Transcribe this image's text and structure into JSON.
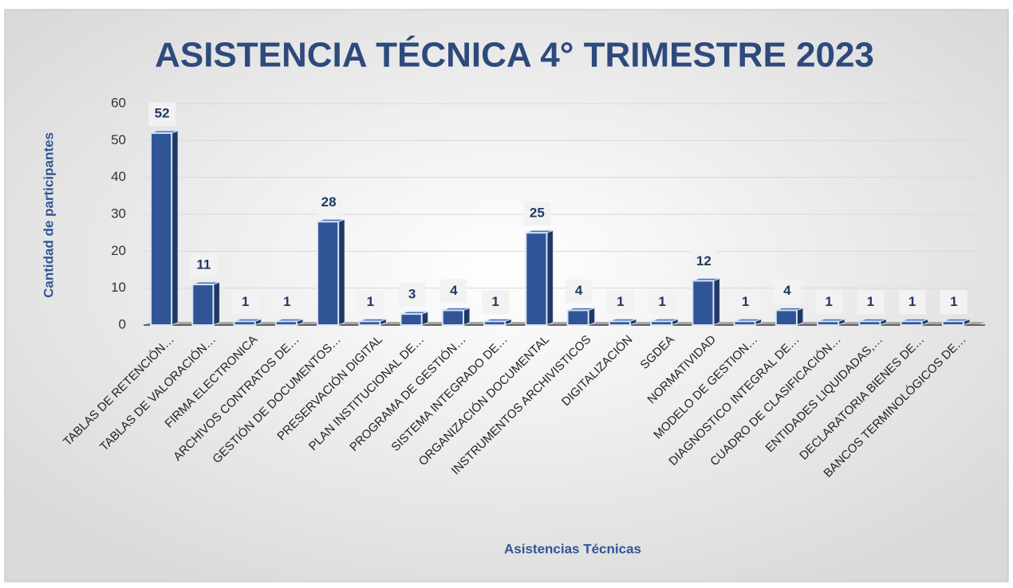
{
  "chart_data": {
    "type": "bar",
    "title": "ASISTENCIA TÉCNICA 4° TRIMESTRE 2023",
    "x_label": "Asistencias Técnicas",
    "y_label": "Cantidad de participantes",
    "categories": [
      "TABLAS DE RETENCIÓN…",
      "TABLAS DE VALORACIÓN…",
      "FIRMA ELECTRONICA",
      "ARCHIVOS CONTRATOS DE…",
      "GESTIÓN DE DOCUMENTOS…",
      "PRESERVACIÓN DIGITAL",
      "PLAN INSTITUCIONAL DE…",
      "PROGRAMA DE GESTIÓN…",
      "SISTEMA INTEGRADO DE…",
      "ORGANIZACIÓN DOCUMENTAL",
      "INSTRUMENTOS ARCHIVISTICOS",
      "DIGITALIZACIÓN",
      "SGDEA",
      "NORMATIVIDAD",
      "MODELO DE GESTION…",
      "DIAGNOSTICO INTEGRAL DE…",
      "CUADRO DE CLASIFICACIÓN…",
      "ENTIDADES LIQUIDADAS,…",
      "DECLARATORIA BIENES DE…",
      "BANCOS TERMINOLÓGICOS DE…"
    ],
    "values": [
      52,
      11,
      1,
      1,
      28,
      1,
      3,
      4,
      1,
      25,
      4,
      1,
      1,
      12,
      1,
      4,
      1,
      1,
      1,
      1
    ],
    "color": "#2f5597",
    "ylim": [
      0,
      60
    ],
    "yticks": [
      0,
      10,
      20,
      30,
      40,
      50,
      60
    ],
    "grid": true
  }
}
